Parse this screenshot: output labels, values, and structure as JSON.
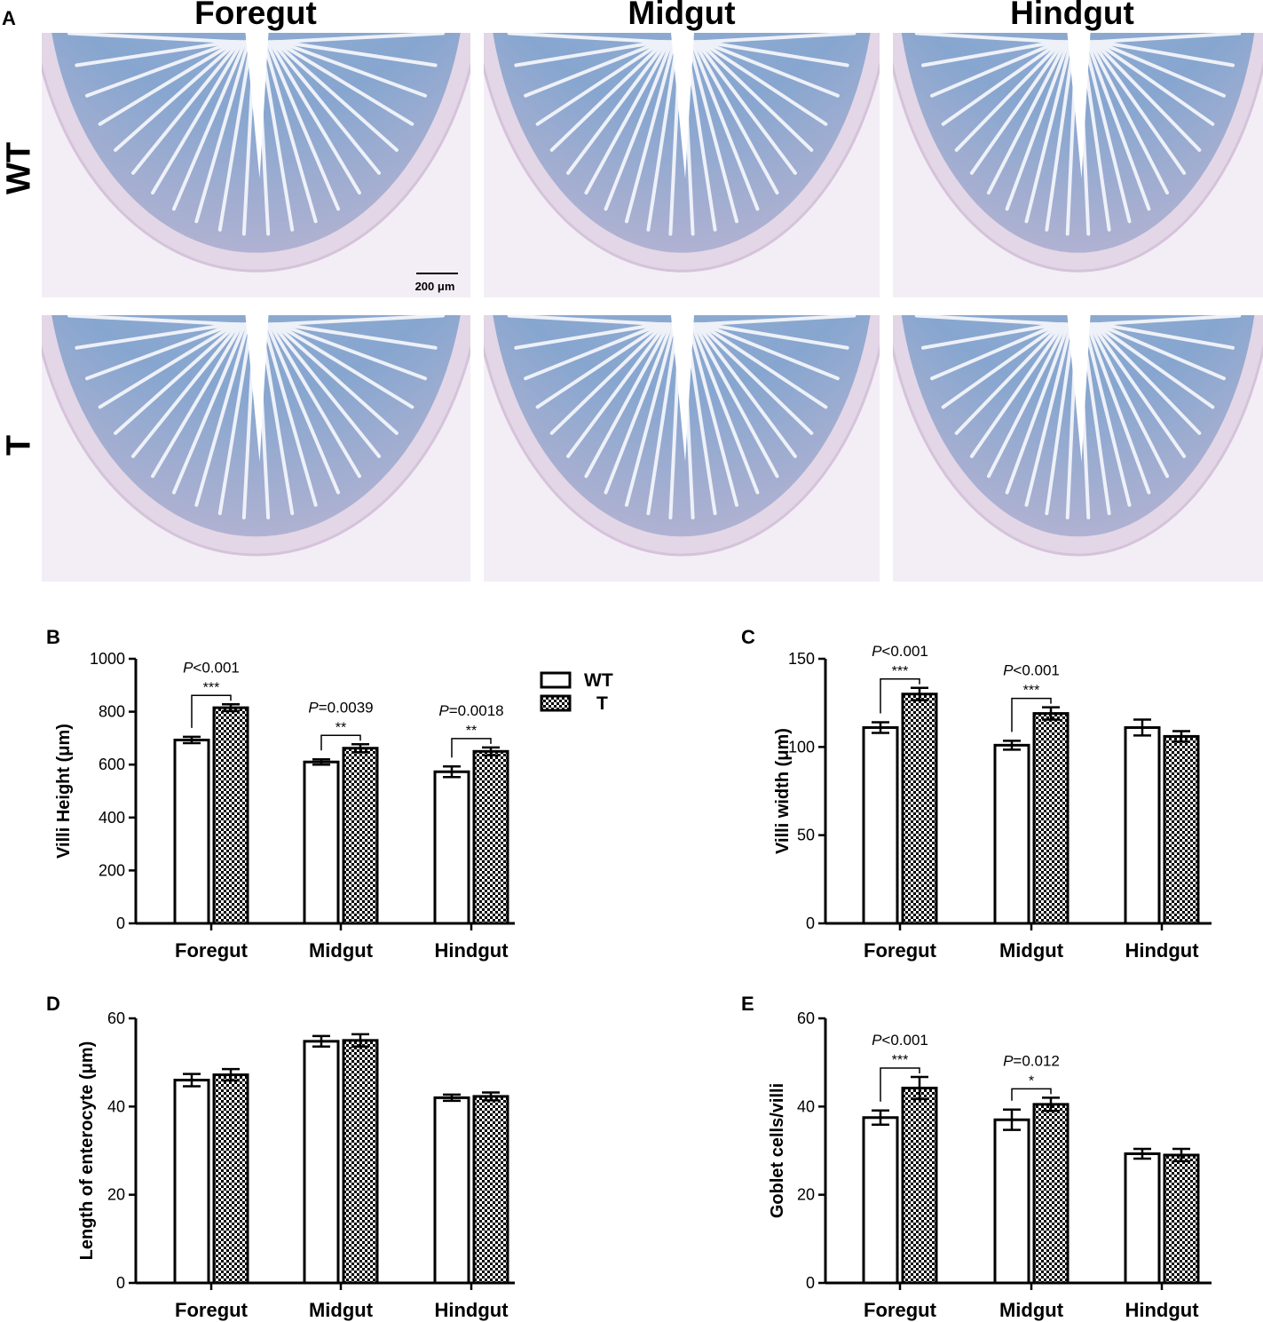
{
  "panel_a": {
    "letter": "A",
    "columns": [
      "Foregut",
      "Midgut",
      "Hindgut"
    ],
    "rows": [
      "WT",
      "T"
    ],
    "scale_bar_label": "200 μm"
  },
  "legend": {
    "series": [
      "WT",
      "T"
    ]
  },
  "chart_data": [
    {
      "panel": "B",
      "type": "bar",
      "categories": [
        "Foregut",
        "Midgut",
        "Hindgut"
      ],
      "series": [
        {
          "name": "WT",
          "values": [
            693,
            610,
            573
          ],
          "errors": [
            12,
            10,
            20
          ]
        },
        {
          "name": "T",
          "values": [
            815,
            662,
            650
          ],
          "errors": [
            13,
            15,
            15
          ]
        }
      ],
      "ylabel": "Villi Height (μm)",
      "ylim": [
        0,
        1000
      ],
      "yticks": [
        0,
        200,
        400,
        600,
        800,
        1000
      ],
      "annotations": [
        {
          "category": 0,
          "p": "<0.001",
          "stars": "***"
        },
        {
          "category": 1,
          "p": "=0.0039",
          "stars": "**"
        },
        {
          "category": 2,
          "p": "=0.0018",
          "stars": "**"
        }
      ]
    },
    {
      "panel": "C",
      "type": "bar",
      "categories": [
        "Foregut",
        "Midgut",
        "Hindgut"
      ],
      "series": [
        {
          "name": "WT",
          "values": [
            111,
            101,
            111
          ],
          "errors": [
            3,
            2.5,
            4.5
          ]
        },
        {
          "name": "T",
          "values": [
            130,
            119,
            106
          ],
          "errors": [
            3.5,
            3.5,
            3
          ]
        }
      ],
      "ylabel": "Villi width (μm)",
      "ylim": [
        0,
        150
      ],
      "yticks": [
        0,
        50,
        100,
        150
      ],
      "annotations": [
        {
          "category": 0,
          "p": "<0.001",
          "stars": "***"
        },
        {
          "category": 1,
          "p": "<0.001",
          "stars": "***"
        }
      ]
    },
    {
      "panel": "D",
      "type": "bar",
      "categories": [
        "Foregut",
        "Midgut",
        "Hindgut"
      ],
      "series": [
        {
          "name": "WT",
          "values": [
            46,
            54.8,
            42
          ],
          "errors": [
            1.4,
            1.2,
            0.7
          ]
        },
        {
          "name": "T",
          "values": [
            47.2,
            55,
            42.3
          ],
          "errors": [
            1.3,
            1.4,
            0.9
          ]
        }
      ],
      "ylabel": "Length of enterocyte (μm)",
      "ylim": [
        0,
        60
      ],
      "yticks": [
        0,
        20,
        40,
        60
      ],
      "annotations": []
    },
    {
      "panel": "E",
      "type": "bar",
      "categories": [
        "Foregut",
        "Midgut",
        "Hindgut"
      ],
      "series": [
        {
          "name": "WT",
          "values": [
            37.5,
            37,
            29.3
          ],
          "errors": [
            1.6,
            2.3,
            1.1
          ]
        },
        {
          "name": "T",
          "values": [
            44.2,
            40.5,
            29
          ],
          "errors": [
            2.5,
            1.5,
            1.4
          ]
        }
      ],
      "ylabel": "Goblet cells/villi",
      "ylim": [
        0,
        60
      ],
      "yticks": [
        0,
        20,
        40,
        60
      ],
      "annotations": [
        {
          "category": 0,
          "p": "<0.001",
          "stars": "***"
        },
        {
          "category": 1,
          "p": "=0.012",
          "stars": "*"
        }
      ]
    }
  ]
}
